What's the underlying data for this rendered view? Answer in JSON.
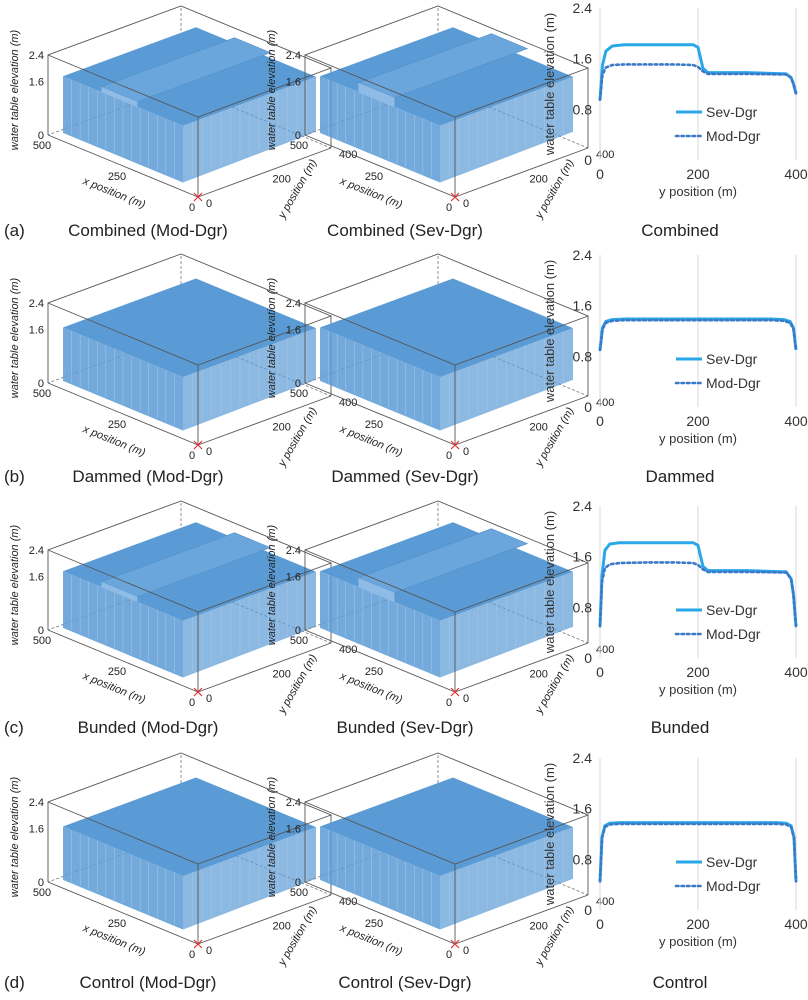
{
  "panels": [
    {
      "letter": "(a)",
      "captions": [
        "Combined (Mod-Dgr)",
        "Combined (Sev-Dgr)",
        "Combined"
      ]
    },
    {
      "letter": "(b)",
      "captions": [
        "Dammed (Mod-Dgr)",
        "Dammed (Sev-Dgr)",
        "Dammed"
      ]
    },
    {
      "letter": "(c)",
      "captions": [
        "Bunded (Mod-Dgr)",
        "Bunded (Sev-Dgr)",
        "Bunded"
      ]
    },
    {
      "letter": "(d)",
      "captions": [
        "Control (Mod-Dgr)",
        "Control (Sev-Dgr)",
        "Control"
      ]
    }
  ],
  "surface_axes": {
    "z_label": "water table elevation (m)",
    "x_label": "x position (m)",
    "y_label": "y position (m)",
    "z_ticks": [
      "2.4",
      "1.6",
      "0"
    ],
    "x_ticks": [
      "500",
      "250",
      "0"
    ],
    "y_ticks": [
      "400",
      "200",
      "0"
    ]
  },
  "line_axes": {
    "y_label": "water table elevation (m)",
    "x_label": "y position (m)",
    "y_ticks": [
      "2.4",
      "1.6",
      "0.8",
      "0"
    ],
    "x_ticks": [
      "0",
      "200",
      "400"
    ]
  },
  "colors": {
    "surface_fill": "#5b9bd5",
    "surface_line": "#aac8e6",
    "sev_dgr": "#2aa7e8",
    "mod_dgr": "#3a78c8",
    "box": "#555555"
  },
  "chart_data": [
    {
      "type": "line",
      "panel": "Combined",
      "xlabel": "y position (m)",
      "ylabel": "water table elevation (m)",
      "xlim": [
        0,
        400
      ],
      "ylim": [
        0,
        2.4
      ],
      "grid": "vertical",
      "legend": "bottom-right",
      "series": [
        {
          "name": "Sev-Dgr",
          "style": "solid",
          "x": [
            0,
            5,
            12,
            25,
            50,
            100,
            150,
            190,
            200,
            210,
            220,
            300,
            380,
            390,
            395,
            400
          ],
          "y": [
            0.95,
            1.5,
            1.72,
            1.8,
            1.82,
            1.82,
            1.82,
            1.82,
            1.78,
            1.45,
            1.38,
            1.38,
            1.36,
            1.3,
            1.2,
            1.05
          ]
        },
        {
          "name": "Mod-Dgr",
          "style": "dotted",
          "x": [
            0,
            5,
            12,
            25,
            50,
            100,
            150,
            190,
            200,
            210,
            220,
            300,
            380,
            390,
            395,
            400
          ],
          "y": [
            0.95,
            1.35,
            1.46,
            1.5,
            1.51,
            1.51,
            1.51,
            1.5,
            1.47,
            1.4,
            1.36,
            1.36,
            1.35,
            1.3,
            1.2,
            1.05
          ]
        }
      ]
    },
    {
      "type": "line",
      "panel": "Dammed",
      "xlabel": "y position (m)",
      "ylabel": "water table elevation (m)",
      "xlim": [
        0,
        400
      ],
      "ylim": [
        0,
        2.4
      ],
      "grid": "vertical",
      "legend": "bottom-right",
      "series": [
        {
          "name": "Sev-Dgr",
          "style": "solid",
          "x": [
            0,
            5,
            12,
            25,
            50,
            200,
            350,
            375,
            388,
            395,
            400
          ],
          "y": [
            0.9,
            1.25,
            1.35,
            1.38,
            1.39,
            1.39,
            1.39,
            1.38,
            1.35,
            1.25,
            0.9
          ]
        },
        {
          "name": "Mod-Dgr",
          "style": "dotted",
          "x": [
            0,
            5,
            12,
            25,
            50,
            200,
            350,
            375,
            388,
            395,
            400
          ],
          "y": [
            0.9,
            1.23,
            1.33,
            1.36,
            1.37,
            1.37,
            1.37,
            1.36,
            1.33,
            1.23,
            0.9
          ]
        }
      ]
    },
    {
      "type": "line",
      "panel": "Bunded",
      "xlabel": "y position (m)",
      "ylabel": "water table elevation (m)",
      "xlim": [
        0,
        400
      ],
      "ylim": [
        0,
        2.4
      ],
      "grid": "vertical",
      "legend": "bottom-right",
      "series": [
        {
          "name": "Sev-Dgr",
          "style": "solid",
          "x": [
            0,
            4,
            10,
            20,
            40,
            100,
            150,
            190,
            200,
            210,
            220,
            300,
            380,
            390,
            395,
            400
          ],
          "y": [
            0.5,
            1.3,
            1.7,
            1.8,
            1.82,
            1.82,
            1.82,
            1.82,
            1.78,
            1.45,
            1.38,
            1.38,
            1.36,
            1.25,
            1.0,
            0.5
          ]
        },
        {
          "name": "Mod-Dgr",
          "style": "dotted",
          "x": [
            0,
            4,
            10,
            20,
            40,
            100,
            150,
            190,
            200,
            210,
            220,
            300,
            380,
            390,
            395,
            400
          ],
          "y": [
            0.5,
            1.2,
            1.42,
            1.48,
            1.5,
            1.51,
            1.51,
            1.5,
            1.47,
            1.4,
            1.36,
            1.36,
            1.35,
            1.25,
            1.0,
            0.5
          ]
        }
      ]
    },
    {
      "type": "line",
      "panel": "Control",
      "xlabel": "y position (m)",
      "ylabel": "water table elevation (m)",
      "xlim": [
        0,
        400
      ],
      "ylim": [
        0,
        2.4
      ],
      "grid": "vertical",
      "legend": "bottom-right",
      "series": [
        {
          "name": "Sev-Dgr",
          "style": "solid",
          "x": [
            0,
            4,
            10,
            20,
            40,
            200,
            360,
            380,
            390,
            396,
            400
          ],
          "y": [
            0.45,
            1.15,
            1.33,
            1.37,
            1.38,
            1.38,
            1.38,
            1.37,
            1.33,
            1.15,
            0.45
          ]
        },
        {
          "name": "Mod-Dgr",
          "style": "dotted",
          "x": [
            0,
            4,
            10,
            20,
            40,
            200,
            360,
            380,
            390,
            396,
            400
          ],
          "y": [
            0.45,
            1.13,
            1.31,
            1.35,
            1.36,
            1.36,
            1.36,
            1.35,
            1.31,
            1.13,
            0.45
          ]
        }
      ]
    }
  ]
}
